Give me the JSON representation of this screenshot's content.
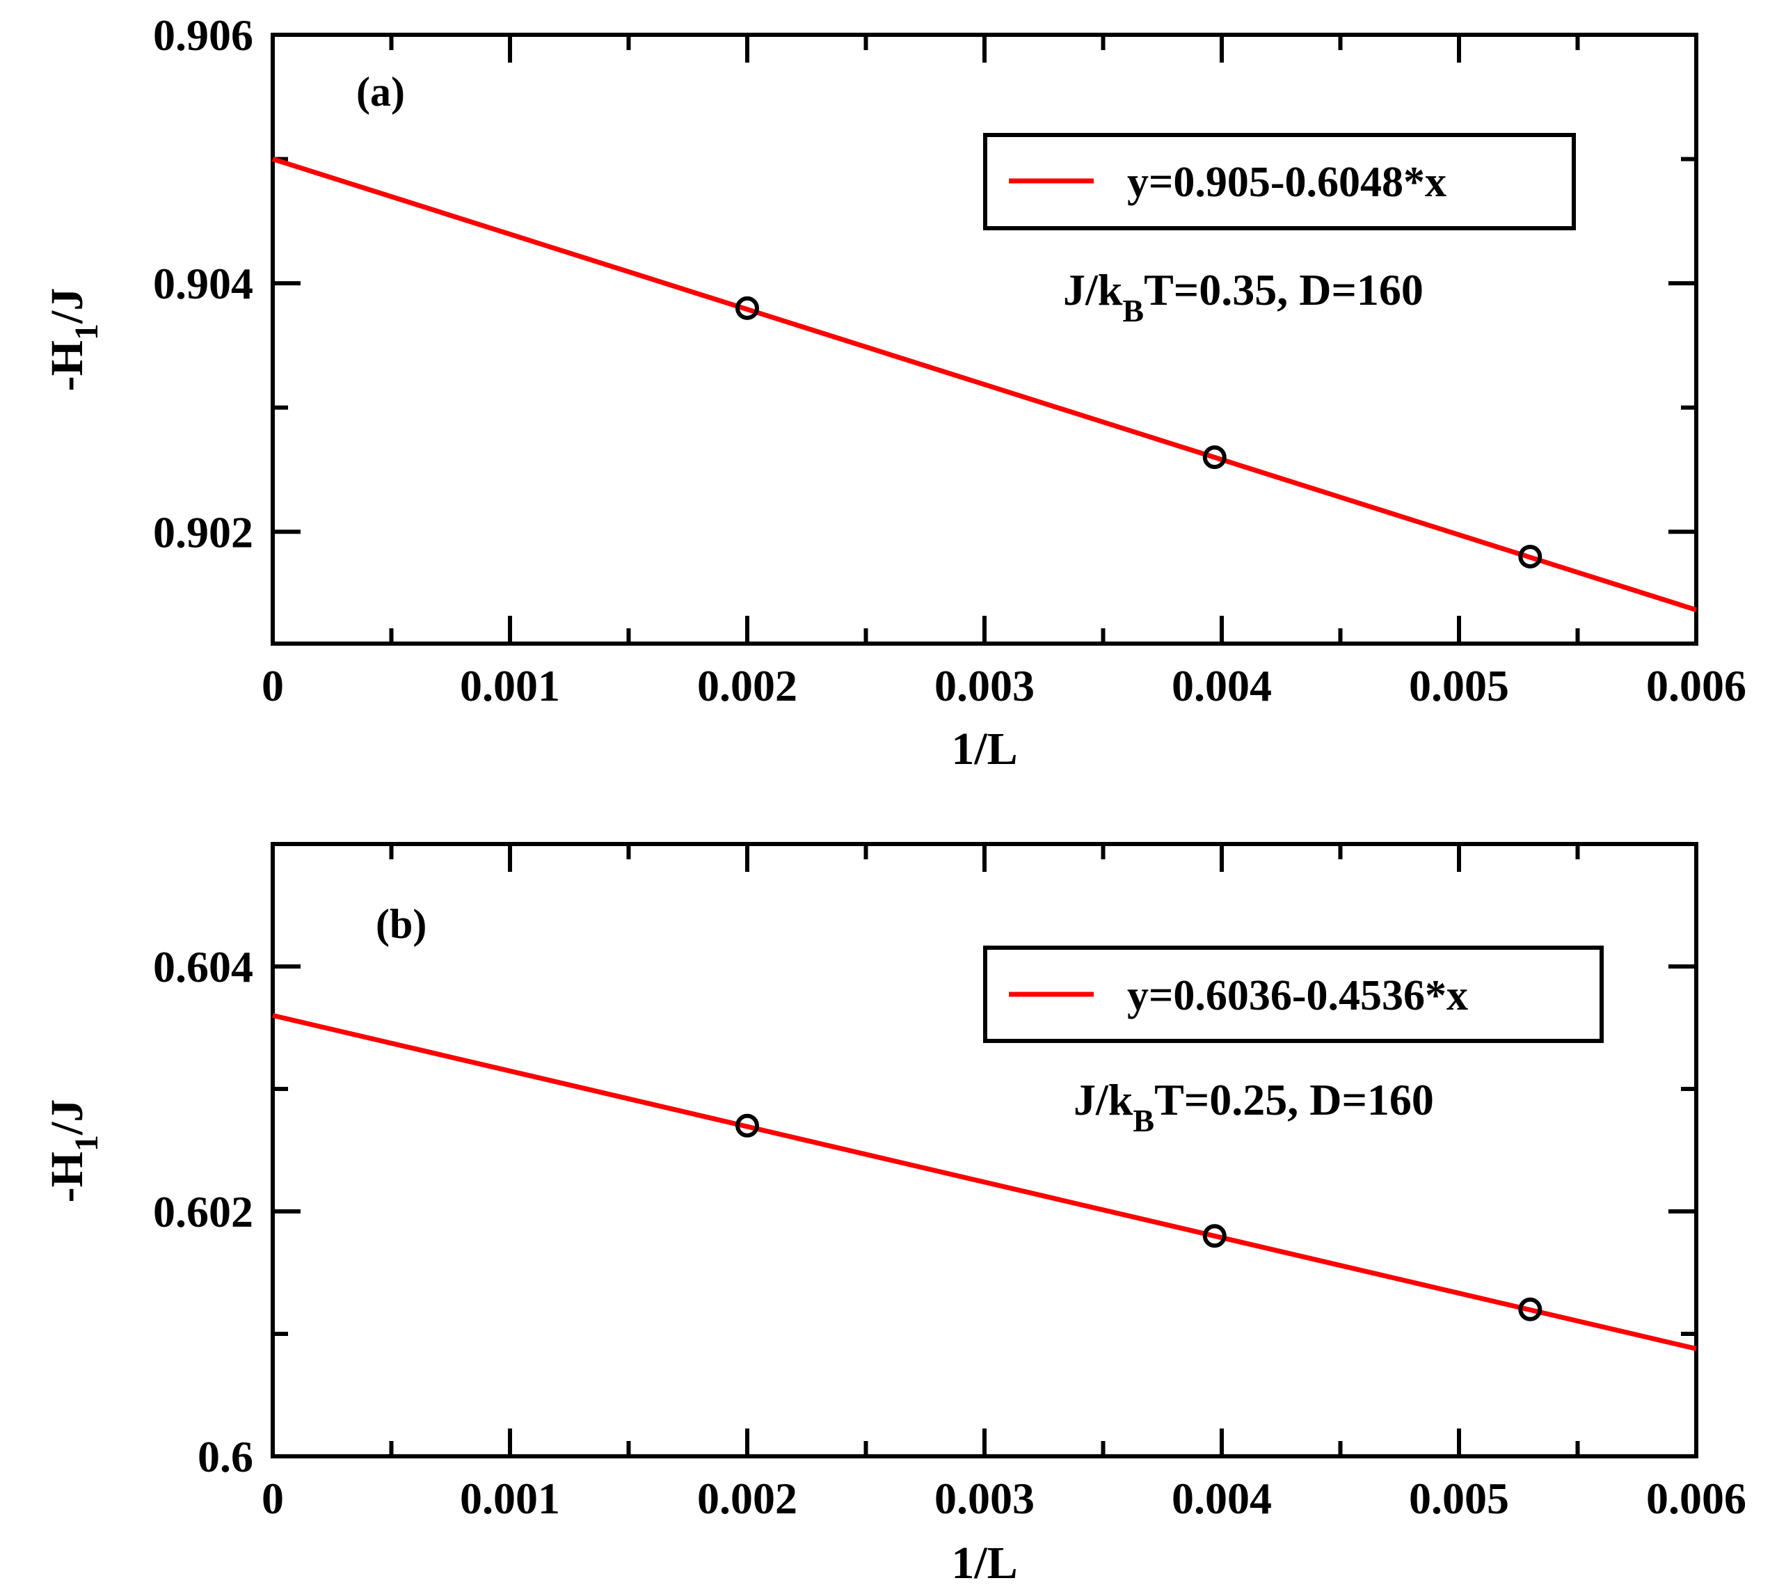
{
  "chart_data": [
    {
      "type": "scatter",
      "panel_label": "(a)",
      "xlabel": "1/L",
      "ylabel": "-H1/J",
      "ylabel_parts": {
        "main": "-H",
        "sub": "1",
        "rest": "/J"
      },
      "xlim": [
        0,
        0.006
      ],
      "ylim": [
        0.9011,
        0.906
      ],
      "x_ticks": [
        "0",
        "0.001",
        "0.002",
        "0.003",
        "0.004",
        "0.005",
        "0.006"
      ],
      "y_ticks": [
        "0.902",
        "0.904",
        "0.906"
      ],
      "y_tick_values": [
        0.902,
        0.904,
        0.906
      ],
      "grid": false,
      "points": {
        "x": [
          0.002,
          0.00397,
          0.0053
        ],
        "y": [
          0.9038,
          0.9026,
          0.9018
        ]
      },
      "fit": {
        "intercept": 0.905,
        "slope": -0.6048,
        "color": "#ff0000"
      },
      "legend": {
        "label": "y=0.905-0.6048*x",
        "position": "top-right"
      },
      "annotation": {
        "main": "J/k",
        "sub": "B",
        "rest": "T=0.35, D=160"
      }
    },
    {
      "type": "scatter",
      "panel_label": "(b)",
      "xlabel": "1/L",
      "ylabel": "-H1/J",
      "ylabel_parts": {
        "main": "-H",
        "sub": "1",
        "rest": "/J"
      },
      "xlim": [
        0,
        0.006
      ],
      "ylim": [
        0.6,
        0.605
      ],
      "x_ticks": [
        "0",
        "0.001",
        "0.002",
        "0.003",
        "0.004",
        "0.005",
        "0.006"
      ],
      "y_ticks": [
        "0.6",
        "0.602",
        "0.604"
      ],
      "y_tick_values": [
        0.6,
        0.602,
        0.604
      ],
      "grid": false,
      "points": {
        "x": [
          0.002,
          0.00397,
          0.0053
        ],
        "y": [
          0.6027,
          0.6018,
          0.6012
        ]
      },
      "fit": {
        "intercept": 0.6036,
        "slope": -0.4536,
        "color": "#ff0000"
      },
      "legend": {
        "label": "y=0.6036-0.4536*x",
        "position": "top-right"
      },
      "annotation": {
        "main": "J/k",
        "sub": "B",
        "rest": "T=0.25, D=160"
      }
    }
  ]
}
